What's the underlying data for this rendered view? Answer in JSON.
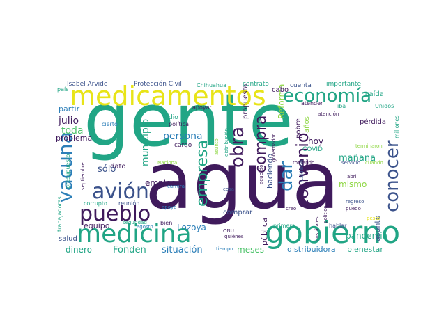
{
  "palette": {
    "teal": "#21a585",
    "dark_purple": "#3f1a5c",
    "indigo": "#3b528b",
    "blue": "#2c7fb8",
    "green": "#4ec36b",
    "lime": "#8fd744",
    "yellow": "#e8e419",
    "teal_light": "#2ab07f"
  },
  "words": [
    {
      "text": "gente",
      "color": "#21a585"
    },
    {
      "text": "agua",
      "color": "#3f1a5c"
    },
    {
      "text": "gobierno",
      "color": "#21a585"
    },
    {
      "text": "medicamentos",
      "color": "#e8e419"
    },
    {
      "text": "medicina",
      "color": "#21a585"
    },
    {
      "text": "economía",
      "color": "#21a585"
    },
    {
      "text": "pueblo",
      "color": "#3f1a5c"
    },
    {
      "text": "avión",
      "color": "#3b528b"
    },
    {
      "text": "vacuna",
      "color": "#2c7fb8"
    },
    {
      "text": "empresa",
      "color": "#21a585"
    },
    {
      "text": "obra",
      "color": "#3f1a5c"
    },
    {
      "text": "compra",
      "color": "#3f1a5c"
    },
    {
      "text": "convenio",
      "color": "#3f1a5c"
    },
    {
      "text": "conocer",
      "color": "#3b528b"
    },
    {
      "text": "dar",
      "color": "#2c7fb8"
    },
    {
      "text": "persona",
      "color": "#2c7fb8"
    },
    {
      "text": "municipio",
      "color": "#21a585"
    },
    {
      "text": "julio",
      "color": "#3f1a5c"
    },
    {
      "text": "toda",
      "color": "#4ec36b"
    },
    {
      "text": "problema",
      "color": "#3f1a5c"
    },
    {
      "text": "empleo",
      "color": "#3f1a5c"
    },
    {
      "text": "sólo",
      "color": "#3b528b"
    },
    {
      "text": "dato",
      "color": "#3f1a5c"
    },
    {
      "text": "equipo",
      "color": "#3f1a5c"
    },
    {
      "text": "Fonden",
      "color": "#21a585"
    },
    {
      "text": "situación",
      "color": "#2c7fb8"
    },
    {
      "text": "dinero",
      "color": "#21a585"
    },
    {
      "text": "meses",
      "color": "#4ec36b"
    },
    {
      "text": "mañana",
      "color": "#21a585"
    },
    {
      "text": "mismo",
      "color": "#8fd744"
    },
    {
      "text": "hoy",
      "color": "#3f1a5c"
    },
    {
      "text": "Reforma",
      "color": "#8fd744"
    },
    {
      "text": "propuesta",
      "color": "#3f1a5c"
    },
    {
      "text": "haciendo",
      "color": "#3b528b"
    },
    {
      "text": "pública",
      "color": "#3f1a5c"
    },
    {
      "text": "Lozoya",
      "color": "#2c7fb8"
    },
    {
      "text": "pandemia",
      "color": "#21a585"
    },
    {
      "text": "distribuidora",
      "color": "#2c7fb8"
    },
    {
      "text": "bienestar",
      "color": "#21a585"
    },
    {
      "text": "comprar",
      "color": "#3b528b"
    },
    {
      "text": "asunto",
      "color": "#3b528b"
    },
    {
      "text": "partir",
      "color": "#2c7fb8"
    },
    {
      "text": "cabo",
      "color": "#3f1a5c"
    },
    {
      "text": "salud",
      "color": "#3b528b"
    },
    {
      "text": "caída",
      "color": "#21a585"
    },
    {
      "text": "pérdida",
      "color": "#3f1a5c"
    },
    {
      "text": "pobre",
      "color": "#3f1a5c"
    },
    {
      "text": "años",
      "color": "#8fd744"
    },
    {
      "text": "COVID",
      "color": "#21a585"
    },
    {
      "text": "cuenta",
      "color": "#3b528b"
    },
    {
      "text": "importante",
      "color": "#21a585"
    },
    {
      "text": "contrato",
      "color": "#21a585"
    },
    {
      "text": "Isabel Arvide",
      "color": "#3b528b"
    },
    {
      "text": "Protección Civil",
      "color": "#3b528b"
    },
    {
      "text": "Chihuahua",
      "color": "#21a585"
    },
    {
      "text": "país",
      "color": "#21a585"
    },
    {
      "text": "apoyar",
      "color": "#3f1a5c"
    },
    {
      "text": "cargo",
      "color": "#3f1a5c"
    },
    {
      "text": "dio",
      "color": "#21a585"
    },
    {
      "text": "política",
      "color": "#3f1a5c"
    },
    {
      "text": "cierto",
      "color": "#2c7fb8"
    },
    {
      "text": "atender",
      "color": "#3f1a5c"
    },
    {
      "text": "iba",
      "color": "#21a585"
    },
    {
      "text": "atención",
      "color": "#3f1a5c"
    },
    {
      "text": "Unidos",
      "color": "#21a585"
    },
    {
      "text": "millones",
      "color": "#21a585"
    },
    {
      "text": "corrupto",
      "color": "#21a585"
    },
    {
      "text": "reunión",
      "color": "#3b528b"
    },
    {
      "text": "agosto",
      "color": "#2c7fb8"
    },
    {
      "text": "seguridad",
      "color": "#21a585"
    },
    {
      "text": "bien",
      "color": "#3f1a5c"
    },
    {
      "text": "apoyo",
      "color": "#2c7fb8"
    },
    {
      "text": "carrera",
      "color": "#2c7fb8"
    },
    {
      "text": "Nacional",
      "color": "#8fd744"
    },
    {
      "text": "tiempo",
      "color": "#2c7fb8"
    },
    {
      "text": "quiénes",
      "color": "#3f1a5c"
    },
    {
      "text": "ONU",
      "color": "#3f1a5c"
    },
    {
      "text": "cosa",
      "color": "#3b528b"
    },
    {
      "text": "primera",
      "color": "#21a585"
    },
    {
      "text": "hablar",
      "color": "#3b528b"
    },
    {
      "text": "creo",
      "color": "#3f1a5c"
    },
    {
      "text": "puedo",
      "color": "#3f1a5c"
    },
    {
      "text": "regreso",
      "color": "#3b528b"
    },
    {
      "text": "abril",
      "color": "#3f1a5c"
    },
    {
      "text": "tomando",
      "color": "#3f1a5c"
    },
    {
      "text": "servicio",
      "color": "#3b528b"
    },
    {
      "text": "cuando",
      "color": "#8fd744"
    },
    {
      "text": "terminaron",
      "color": "#8fd744"
    },
    {
      "text": "pesos",
      "color": "#e8e419"
    },
    {
      "text": "trabajadores",
      "color": "#21a585"
    },
    {
      "text": "presupuesto",
      "color": "#21a585"
    },
    {
      "text": "septiembre",
      "color": "#3f1a5c"
    },
    {
      "text": "asunto",
      "color": "#8fd744"
    },
    {
      "text": "distribución",
      "color": "#21a585"
    },
    {
      "text": "gobernador",
      "color": "#3f1a5c"
    },
    {
      "text": "acuerdo",
      "color": "#3f1a5c"
    },
    {
      "text": "Calderón",
      "color": "#3b528b"
    },
    {
      "text": "hospitales",
      "color": "#3f1a5c"
    },
    {
      "text": "político",
      "color": "#3f1a5c"
    }
  ]
}
